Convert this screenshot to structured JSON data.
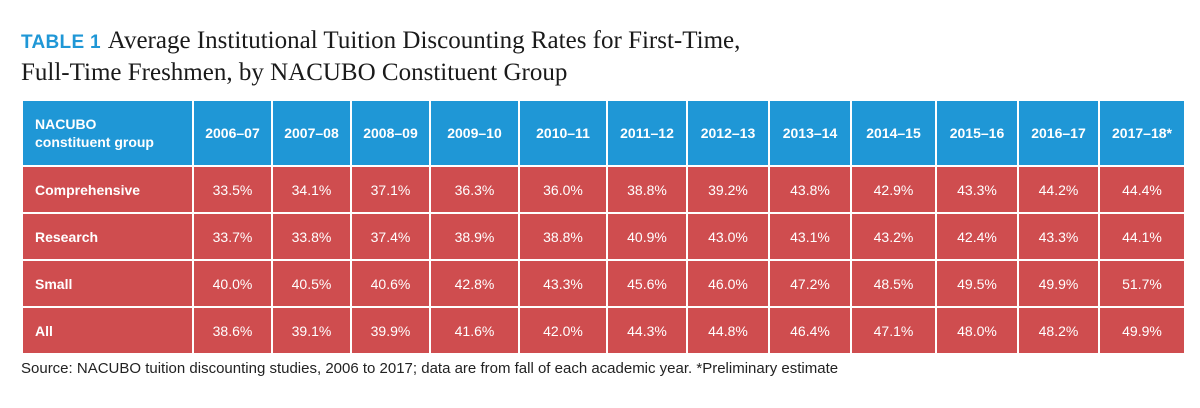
{
  "title": {
    "label": "TABLE 1",
    "line1": "Average Institutional Tuition Discounting Rates for First-Time,",
    "line2": "Full-Time Freshmen, by NACUBO Constituent Group"
  },
  "table": {
    "header": {
      "group_label_line1": "NACUBO",
      "group_label_line2": "constituent group",
      "years": [
        "2006–07",
        "2007–08",
        "2008–09",
        "2009–10",
        "2010–11",
        "2011–12",
        "2012–13",
        "2013–14",
        "2014–15",
        "2015–16",
        "2016–17",
        "2017–18*"
      ]
    },
    "rows": [
      {
        "group": "Comprehensive",
        "values": [
          "33.5%",
          "34.1%",
          "37.1%",
          "36.3%",
          "36.0%",
          "38.8%",
          "39.2%",
          "43.8%",
          "42.9%",
          "43.3%",
          "44.2%",
          "44.4%"
        ]
      },
      {
        "group": "Research",
        "values": [
          "33.7%",
          "33.8%",
          "37.4%",
          "38.9%",
          "38.8%",
          "40.9%",
          "43.0%",
          "43.1%",
          "43.2%",
          "42.4%",
          "43.3%",
          "44.1%"
        ]
      },
      {
        "group": "Small",
        "values": [
          "40.0%",
          "40.5%",
          "40.6%",
          "42.8%",
          "43.3%",
          "45.6%",
          "46.0%",
          "47.2%",
          "48.5%",
          "49.5%",
          "49.9%",
          "51.7%"
        ]
      },
      {
        "group": "All",
        "values": [
          "38.6%",
          "39.1%",
          "39.9%",
          "41.6%",
          "42.0%",
          "44.3%",
          "44.8%",
          "46.4%",
          "47.1%",
          "48.0%",
          "48.2%",
          "49.9%"
        ]
      }
    ]
  },
  "source": "Source: NACUBO tuition discounting studies, 2006 to 2017; data are from fall of each academic year. *Preliminary estimate",
  "colors": {
    "header_bg": "#1f97d6",
    "row_bg": "#cf4d4f",
    "label_accent": "#1f97d6"
  }
}
